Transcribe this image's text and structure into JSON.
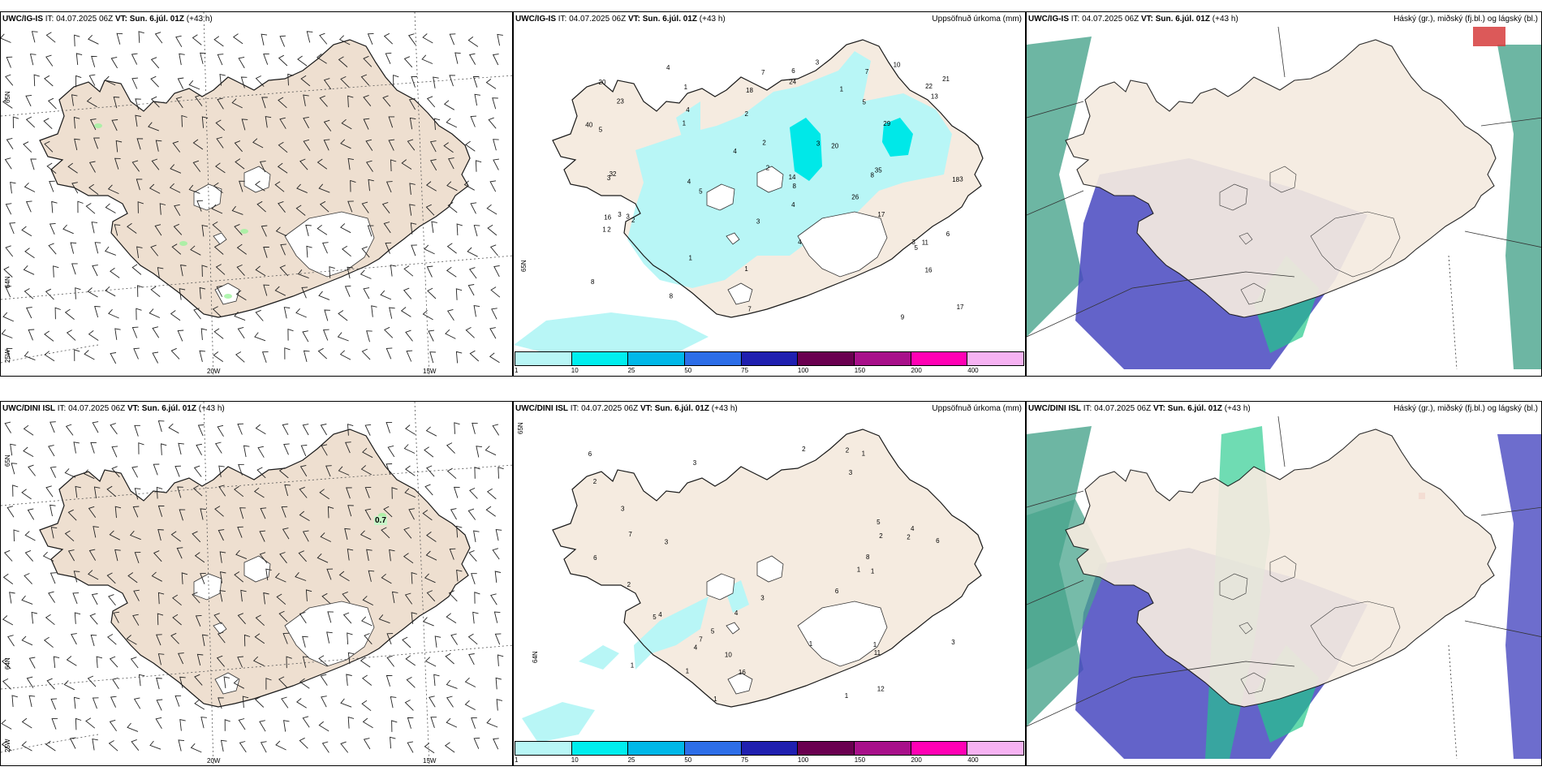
{
  "panels": {
    "top_left": {
      "model": "UWC/IG-IS",
      "it": "IT: 04.07.2025 06Z",
      "vt_label": "VT:",
      "vt": "Sun. 6.júl. 01Z",
      "lead": "(+43 h)"
    },
    "top_mid": {
      "model": "UWC/IG-IS",
      "it": "IT: 04.07.2025 06Z",
      "vt_label": "VT:",
      "vt": "Sun. 6.júl. 01Z",
      "lead": "(+43 h)",
      "field": "Uppsöfnuð úrkoma (mm)"
    },
    "top_right": {
      "model": "UWC/IG-IS",
      "it": "IT: 04.07.2025 06Z",
      "vt_label": "VT:",
      "vt": "Sun. 6.júl. 01Z",
      "lead": "(+43 h)",
      "field": "Háský (gr.), miðský (fj.bl.) og lágský (bl.)"
    },
    "bottom_left": {
      "model": "UWC/DINI ISL",
      "it": "IT: 04.07.2025 06Z",
      "vt_label": "VT:",
      "vt": "Sun. 6.júl. 01Z",
      "lead": "(+43 h)",
      "annotation": "0.7"
    },
    "bottom_mid": {
      "model": "UWC/DINI ISL",
      "it": "IT: 04.07.2025 06Z",
      "vt_label": "VT:",
      "vt": "Sun. 6.júl. 01Z",
      "lead": "(+43 h)",
      "field": "Uppsöfnuð úrkoma (mm)"
    },
    "bottom_right": {
      "model": "UWC/DINI ISL",
      "it": "IT: 04.07.2025 06Z",
      "vt_label": "VT:",
      "vt": "Sun. 6.júl. 01Z",
      "lead": "(+43 h)",
      "field": "Háský (gr.), miðský (fj.bl.) og lágský (bl.)"
    }
  },
  "grid_labels": {
    "lon_20w": "20W",
    "lon_15w": "15W",
    "lat_65n": "65N",
    "lat_64n": "64N",
    "lat_25w": "25W"
  },
  "legend": {
    "ticks": [
      "1",
      "10",
      "25",
      "50",
      "75",
      "100",
      "150",
      "200",
      "400"
    ],
    "colors": [
      "#b8f6f6",
      "#00eeee",
      "#00b8e8",
      "#2d6ee8",
      "#2020b0",
      "#6a0050",
      "#a8108a",
      "#ff00b4",
      "#f6b2f2"
    ]
  },
  "colors": {
    "land": "#f5ebe0",
    "land_wind": "#eedfd0",
    "precip_light": "#b8f6f6",
    "precip_mid": "#00e8e8",
    "cloud_high": "#48a48c",
    "cloud_mid": "#22c98a",
    "cloud_low": "#4848c0"
  },
  "precip_top": [
    "1",
    "2",
    "4",
    "3",
    "7",
    "6",
    "5",
    "2",
    "1",
    "4",
    "5",
    "4",
    "8",
    "18",
    "16",
    "17",
    "14",
    "9",
    "8",
    "5",
    "3",
    "20",
    "11",
    "7",
    "23",
    "29",
    "35",
    "26",
    "24",
    "8",
    "3",
    "13",
    "17",
    "32",
    "40",
    "22",
    "16",
    "2",
    "3",
    "6",
    "10",
    "21",
    "18",
    "5",
    "4",
    "8",
    "3",
    "3",
    "20",
    "3",
    "1",
    "1",
    "2",
    "4",
    "3",
    "1",
    "4",
    "7",
    "1",
    "2"
  ],
  "precip_bottom": [
    "2",
    "1",
    "4",
    "3",
    "2",
    "1",
    "1",
    "1",
    "2",
    "4",
    "5",
    "1",
    "2",
    "3",
    "7",
    "11",
    "7",
    "6",
    "10",
    "3",
    "4",
    "5",
    "3",
    "12",
    "6",
    "16",
    "5",
    "3",
    "2",
    "4",
    "3",
    "8",
    "6",
    "6",
    "2",
    "1",
    "1",
    "1",
    "1"
  ]
}
